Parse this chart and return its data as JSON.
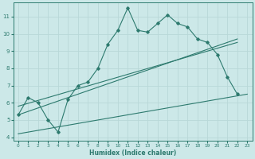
{
  "xlabel": "Humidex (Indice chaleur)",
  "bg_color": "#cce8e8",
  "grid_color": "#b8d8d8",
  "line_color": "#2d7a6e",
  "xlim": [
    -0.5,
    23.5
  ],
  "ylim": [
    3.8,
    11.8
  ],
  "xticks": [
    0,
    1,
    2,
    3,
    4,
    5,
    6,
    7,
    8,
    9,
    10,
    11,
    12,
    13,
    14,
    15,
    16,
    17,
    18,
    19,
    20,
    21,
    22,
    23
  ],
  "yticks": [
    4,
    5,
    6,
    7,
    8,
    9,
    10,
    11
  ],
  "curve_x": [
    0,
    1,
    2,
    3,
    4,
    5,
    6,
    7,
    8,
    9,
    10,
    11,
    12,
    13,
    14,
    15,
    16,
    17,
    18,
    19,
    20,
    21,
    22
  ],
  "curve_y": [
    5.3,
    6.3,
    6.0,
    5.0,
    4.3,
    6.2,
    7.0,
    7.2,
    8.0,
    9.4,
    10.2,
    11.5,
    10.2,
    10.1,
    10.6,
    11.1,
    10.6,
    10.4,
    9.7,
    9.5,
    8.8,
    7.5,
    6.5
  ],
  "line1_x": [
    0,
    22
  ],
  "line1_y": [
    5.3,
    9.7
  ],
  "line2_x": [
    0,
    23
  ],
  "line2_y": [
    4.2,
    6.5
  ],
  "line3_x": [
    0,
    22
  ],
  "line3_y": [
    5.8,
    9.5
  ]
}
